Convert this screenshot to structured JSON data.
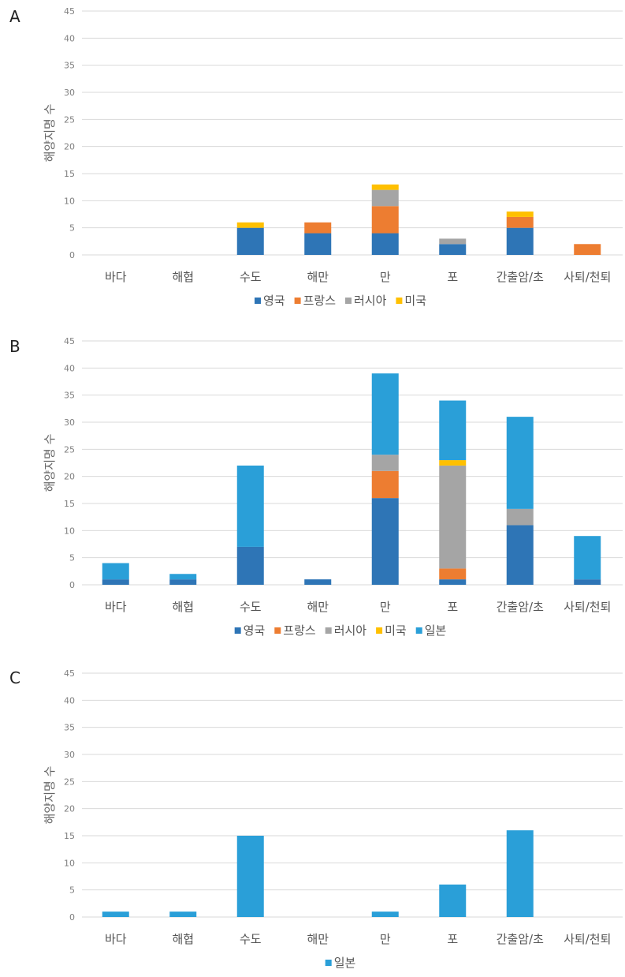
{
  "colors": {
    "영국": "#2e75b6",
    "프랑스": "#ed7d31",
    "러시아": "#a5a5a5",
    "미국": "#ffc000",
    "일본": "#2a9fd8"
  },
  "chart_data": [
    {
      "type": "bar",
      "stacked": true,
      "panel": "A",
      "ylabel": "해양지명 수",
      "xlabel": "",
      "ylim": [
        0,
        45
      ],
      "yticks": [
        0,
        5,
        10,
        15,
        20,
        25,
        30,
        35,
        40,
        45
      ],
      "grid": true,
      "legend": "bottom",
      "categories": [
        "바다",
        "해협",
        "수도",
        "해만",
        "만",
        "포",
        "간출암/초",
        "사퇴/천퇴"
      ],
      "series": [
        {
          "name": "영국",
          "values": [
            0,
            0,
            5,
            4,
            4,
            2,
            5,
            0
          ]
        },
        {
          "name": "프랑스",
          "values": [
            0,
            0,
            0,
            2,
            5,
            0,
            2,
            2
          ]
        },
        {
          "name": "러시아",
          "values": [
            0,
            0,
            0,
            0,
            3,
            1,
            0,
            0
          ]
        },
        {
          "name": "미국",
          "values": [
            0,
            0,
            1,
            0,
            1,
            0,
            1,
            0
          ]
        }
      ]
    },
    {
      "type": "bar",
      "stacked": true,
      "panel": "B",
      "ylabel": "해양지명 수",
      "xlabel": "",
      "ylim": [
        0,
        45
      ],
      "yticks": [
        0,
        5,
        10,
        15,
        20,
        25,
        30,
        35,
        40,
        45
      ],
      "grid": true,
      "legend": "bottom",
      "categories": [
        "바다",
        "해협",
        "수도",
        "해만",
        "만",
        "포",
        "간출암/초",
        "사퇴/천퇴"
      ],
      "series": [
        {
          "name": "영국",
          "values": [
            1,
            1,
            7,
            1,
            16,
            1,
            11,
            1
          ]
        },
        {
          "name": "프랑스",
          "values": [
            0,
            0,
            0,
            0,
            5,
            2,
            0,
            0
          ]
        },
        {
          "name": "러시아",
          "values": [
            0,
            0,
            0,
            0,
            3,
            19,
            3,
            0
          ]
        },
        {
          "name": "미국",
          "values": [
            0,
            0,
            0,
            0,
            0,
            1,
            0,
            0
          ]
        },
        {
          "name": "일본",
          "values": [
            3,
            1,
            15,
            0,
            15,
            11,
            17,
            8
          ]
        }
      ]
    },
    {
      "type": "bar",
      "stacked": true,
      "panel": "C",
      "ylabel": "해양지명 수",
      "xlabel": "",
      "ylim": [
        0,
        45
      ],
      "yticks": [
        0,
        5,
        10,
        15,
        20,
        25,
        30,
        35,
        40,
        45
      ],
      "grid": true,
      "legend": "bottom",
      "categories": [
        "바다",
        "해협",
        "수도",
        "해만",
        "만",
        "포",
        "간출암/초",
        "사퇴/천퇴"
      ],
      "series": [
        {
          "name": "일본",
          "values": [
            1,
            1,
            15,
            0,
            1,
            6,
            16,
            0
          ]
        }
      ]
    }
  ]
}
